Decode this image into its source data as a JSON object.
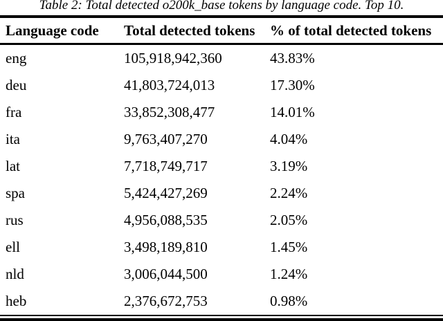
{
  "caption": "Table 2: Total detected o200k_base tokens by language code. Top 10.",
  "table": {
    "columns": [
      "Language code",
      "Total detected tokens",
      "% of total detected tokens"
    ],
    "rows": [
      {
        "code": "eng",
        "tokens": "105,918,942,360",
        "pct": "43.83%"
      },
      {
        "code": "deu",
        "tokens": "41,803,724,013",
        "pct": "17.30%"
      },
      {
        "code": "fra",
        "tokens": "33,852,308,477",
        "pct": "14.01%"
      },
      {
        "code": "ita",
        "tokens": "9,763,407,270",
        "pct": "4.04%"
      },
      {
        "code": "lat",
        "tokens": "7,718,749,717",
        "pct": "3.19%"
      },
      {
        "code": "spa",
        "tokens": "5,424,427,269",
        "pct": "2.24%"
      },
      {
        "code": "rus",
        "tokens": "4,956,088,535",
        "pct": "2.05%"
      },
      {
        "code": "ell",
        "tokens": "3,498,189,810",
        "pct": "1.45%"
      },
      {
        "code": "nld",
        "tokens": "3,006,044,500",
        "pct": "1.24%"
      },
      {
        "code": "heb",
        "tokens": "2,376,672,753",
        "pct": "0.98%"
      }
    ]
  },
  "colors": {
    "text": "#000000",
    "background": "#ffffff",
    "rule": "#000000"
  }
}
